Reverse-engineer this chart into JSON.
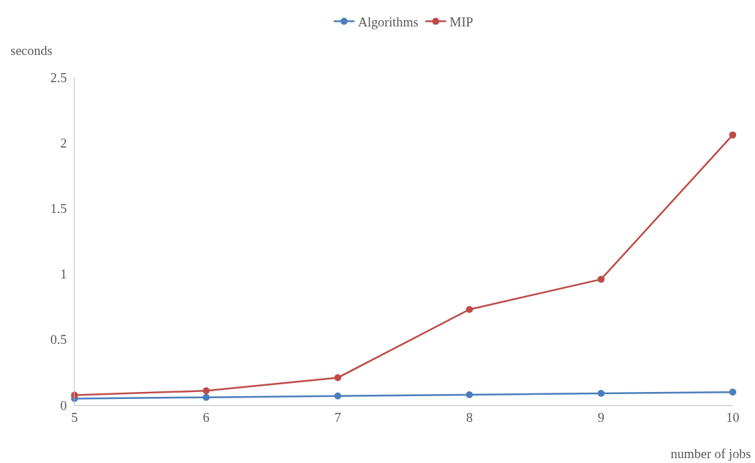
{
  "chart_data": {
    "type": "line",
    "xlabel": "number of jobs",
    "ylabel": "seconds",
    "x": [
      5,
      6,
      7,
      8,
      9,
      10
    ],
    "series": [
      {
        "name": "Algorithms",
        "color": "#4a7ebb",
        "values": [
          0.05,
          0.06,
          0.07,
          0.08,
          0.09,
          0.1
        ]
      },
      {
        "name": "MIP",
        "color": "#be4b48",
        "values": [
          0.077,
          0.11,
          0.21,
          0.73,
          0.96,
          2.06
        ]
      }
    ],
    "xlim": [
      5,
      10
    ],
    "xticks": [
      5,
      6,
      7,
      8,
      9,
      10
    ],
    "ylim": [
      0,
      2.5
    ],
    "yticks": [
      0,
      0.5,
      1,
      1.5,
      2,
      2.5
    ],
    "grid": false,
    "legend": "top",
    "marker": "circle",
    "line_style": "solid"
  }
}
